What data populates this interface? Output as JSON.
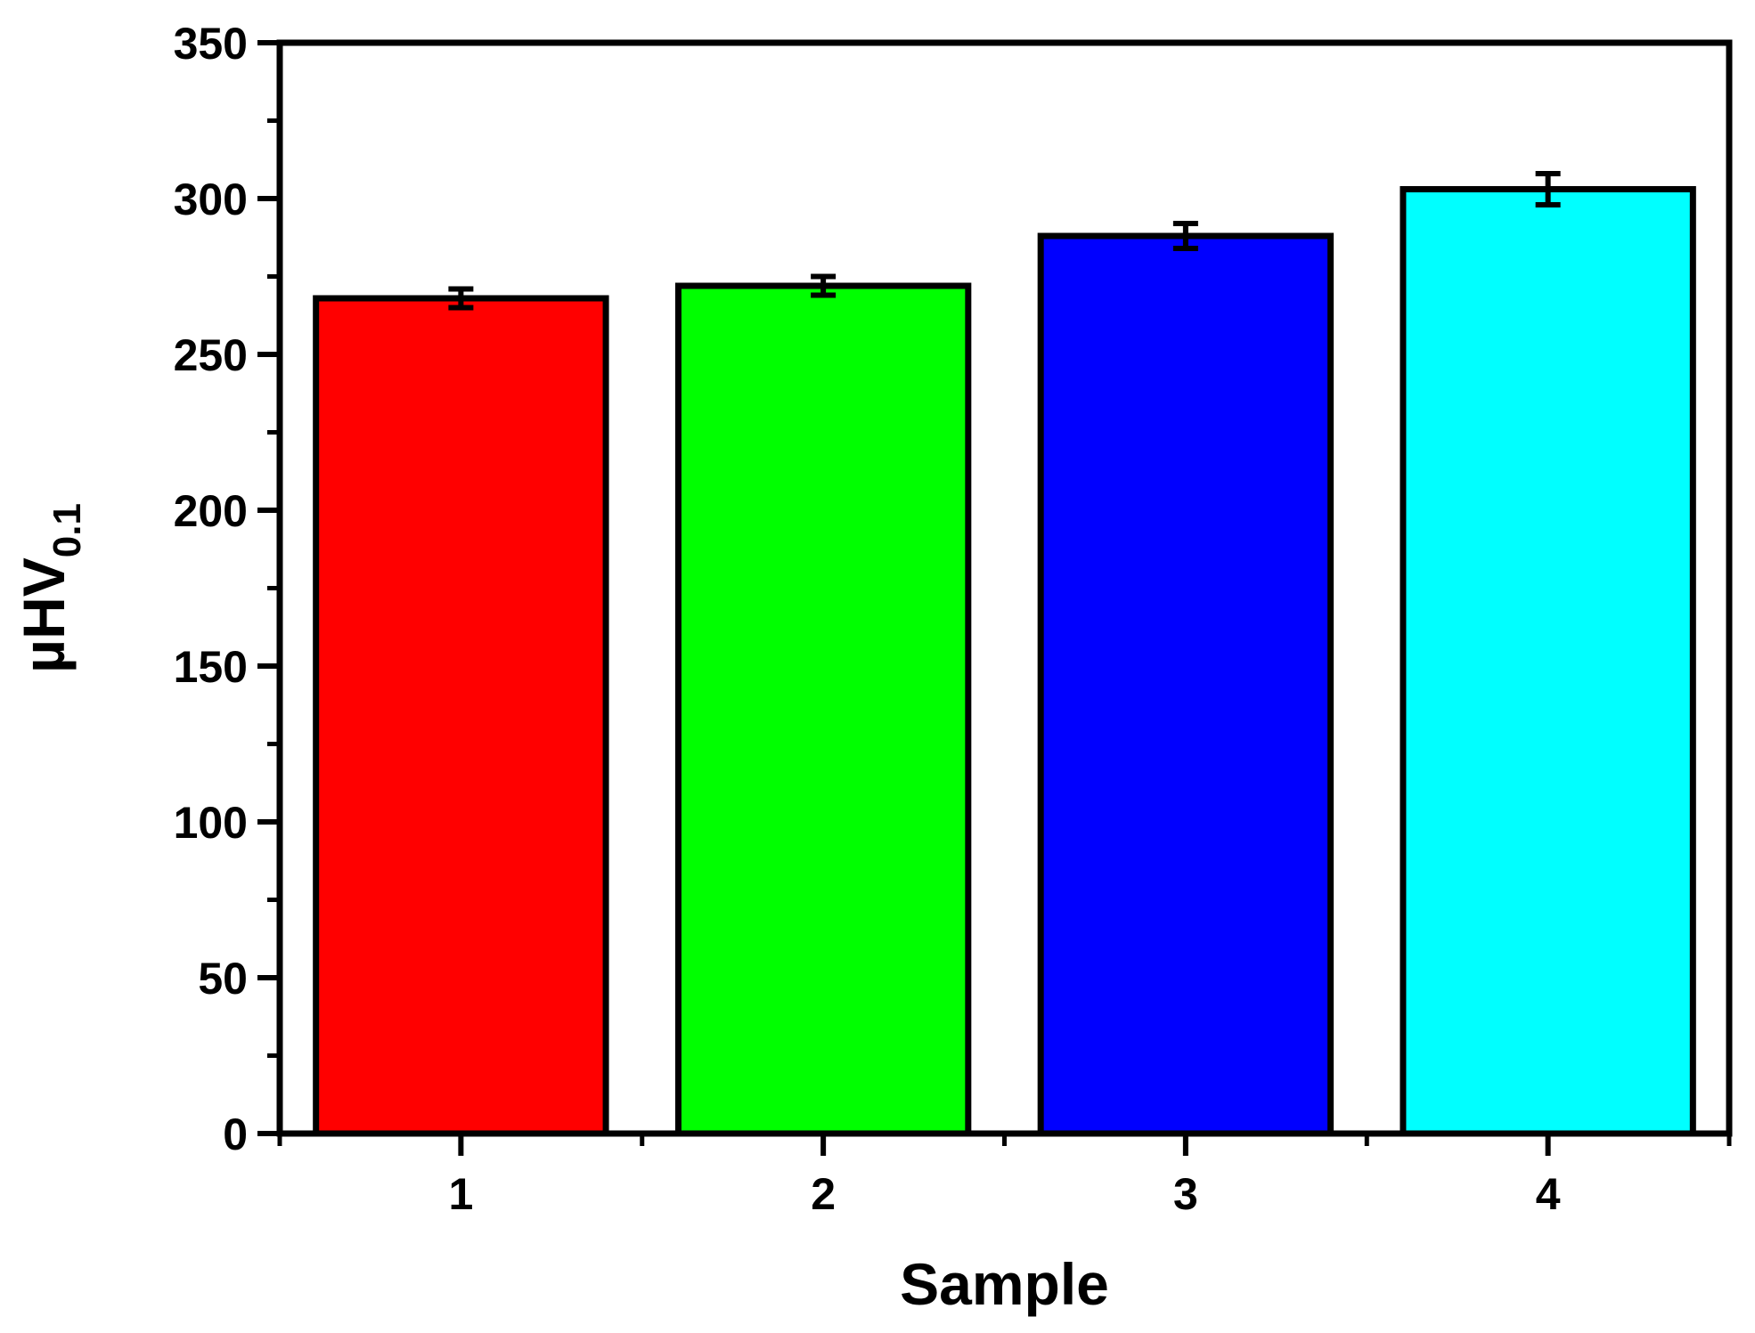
{
  "chart_data": {
    "type": "bar",
    "categories": [
      "1",
      "2",
      "3",
      "4"
    ],
    "values": [
      268,
      272,
      288,
      303
    ],
    "errors": [
      3,
      3,
      4,
      5
    ],
    "colors": [
      "#ff0000",
      "#00ff00",
      "#0000ff",
      "#00ffff"
    ],
    "xlabel": "Sample",
    "ylabel": {
      "main": "µHV",
      "subscript": "0.1"
    },
    "ylim": [
      0,
      350
    ],
    "yticks": [
      0,
      50,
      100,
      150,
      200,
      250,
      300,
      350
    ],
    "ytick_labels": [
      "0",
      "50",
      "100",
      "150",
      "200",
      "250",
      "300",
      "350"
    ],
    "minor_ytick_step": 25,
    "grid": false,
    "legend": "none",
    "frame": "box"
  }
}
